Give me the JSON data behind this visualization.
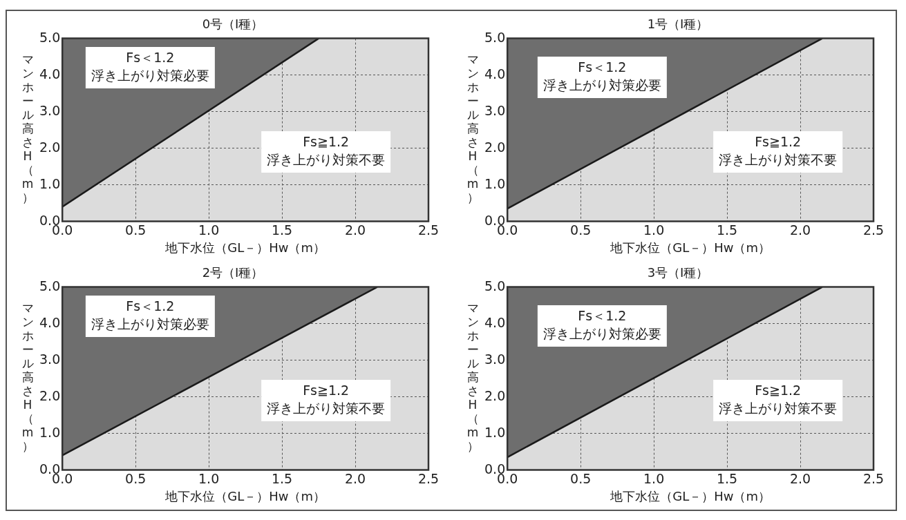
{
  "chart_data": [
    {
      "type": "area",
      "title": "0号（Ⅰ種）",
      "xlabel": "地下水位（GL－）Hw（m）",
      "ylabel": "マンホール高さH（m）",
      "xlim": [
        0,
        2.5
      ],
      "ylim": [
        0,
        5
      ],
      "xticks": [
        {
          "value": 0,
          "label": "0.0"
        },
        {
          "value": 0.5,
          "label": "0.5"
        },
        {
          "value": 1,
          "label": "1.0"
        },
        {
          "value": 1.5,
          "label": "1.5"
        },
        {
          "value": 2,
          "label": "2.0"
        },
        {
          "value": 2.5,
          "label": "2.5"
        }
      ],
      "yticks": [
        {
          "value": 0,
          "label": "0.0"
        },
        {
          "value": 1,
          "label": "1.0"
        },
        {
          "value": 2,
          "label": "2.0"
        },
        {
          "value": 3,
          "label": "3.0"
        },
        {
          "value": 4,
          "label": "4.0"
        },
        {
          "value": 5,
          "label": "5.0"
        }
      ],
      "x": [
        0,
        1.75
      ],
      "series": [
        {
          "color": "#6e6e6e",
          "values": [
            0.4,
            5.0
          ]
        }
      ],
      "grid": true,
      "line_style": "solid",
      "legend": false,
      "annotations": [
        "Fs＜1.2\n浮き上がり対策必要",
        "Fs≧1.2\n浮き上がり対策不要"
      ]
    },
    {
      "type": "area",
      "title": "1号（Ⅰ種）",
      "xlabel": "地下水位（GL－）Hw（m）",
      "ylabel": "マンホール高さH（m）",
      "xlim": [
        0,
        2.5
      ],
      "ylim": [
        0,
        5
      ],
      "xticks": [
        {
          "value": 0,
          "label": "0.0"
        },
        {
          "value": 0.5,
          "label": "0.5"
        },
        {
          "value": 1,
          "label": "1.0"
        },
        {
          "value": 1.5,
          "label": "1.5"
        },
        {
          "value": 2,
          "label": "2.0"
        },
        {
          "value": 2.5,
          "label": "2.5"
        }
      ],
      "yticks": [
        {
          "value": 0,
          "label": "0.0"
        },
        {
          "value": 1,
          "label": "1.0"
        },
        {
          "value": 2,
          "label": "2.0"
        },
        {
          "value": 3,
          "label": "3.0"
        },
        {
          "value": 4,
          "label": "4.0"
        },
        {
          "value": 5,
          "label": "5.0"
        }
      ],
      "x": [
        0,
        2.15
      ],
      "series": [
        {
          "color": "#6e6e6e",
          "values": [
            0.35,
            5.0
          ]
        }
      ],
      "grid": true,
      "line_style": "solid",
      "legend": false,
      "annotations": [
        "Fs＜1.2\n浮き上がり対策必要",
        "Fs≧1.2\n浮き上がり対策不要"
      ]
    },
    {
      "type": "area",
      "title": "2号（Ⅰ種）",
      "xlabel": "地下水位（GL－）Hw（m）",
      "ylabel": "マンホール高さH（m）",
      "xlim": [
        0,
        2.5
      ],
      "ylim": [
        0,
        5
      ],
      "xticks": [
        {
          "value": 0,
          "label": "0.0"
        },
        {
          "value": 0.5,
          "label": "0.5"
        },
        {
          "value": 1,
          "label": "1.0"
        },
        {
          "value": 1.5,
          "label": "1.5"
        },
        {
          "value": 2,
          "label": "2.0"
        },
        {
          "value": 2.5,
          "label": "2.5"
        }
      ],
      "yticks": [
        {
          "value": 0,
          "label": "0.0"
        },
        {
          "value": 1,
          "label": "1.0"
        },
        {
          "value": 2,
          "label": "2.0"
        },
        {
          "value": 3,
          "label": "3.0"
        },
        {
          "value": 4,
          "label": "4.0"
        },
        {
          "value": 5,
          "label": "5.0"
        }
      ],
      "x": [
        0,
        2.15
      ],
      "series": [
        {
          "color": "#6e6e6e",
          "values": [
            0.4,
            5.0
          ]
        }
      ],
      "grid": true,
      "line_style": "solid",
      "legend": false,
      "annotations": [
        "Fs＜1.2\n浮き上がり対策必要",
        "Fs≧1.2\n浮き上がり対策不要"
      ]
    },
    {
      "type": "area",
      "title": "3号（Ⅰ種）",
      "xlabel": "地下水位（GL－）Hw（m）",
      "ylabel": "マンホール高さH（m）",
      "xlim": [
        0,
        2.5
      ],
      "ylim": [
        0,
        5
      ],
      "xticks": [
        {
          "value": 0,
          "label": "0.0"
        },
        {
          "value": 0.5,
          "label": "0.5"
        },
        {
          "value": 1,
          "label": "1.0"
        },
        {
          "value": 1.5,
          "label": "1.5"
        },
        {
          "value": 2,
          "label": "2.0"
        },
        {
          "value": 2.5,
          "label": "2.5"
        }
      ],
      "yticks": [
        {
          "value": 0,
          "label": "0.0"
        },
        {
          "value": 1,
          "label": "1.0"
        },
        {
          "value": 2,
          "label": "2.0"
        },
        {
          "value": 3,
          "label": "3.0"
        },
        {
          "value": 4,
          "label": "4.0"
        },
        {
          "value": 5,
          "label": "5.0"
        }
      ],
      "x": [
        0,
        2.15
      ],
      "series": [
        {
          "color": "#6e6e6e",
          "values": [
            0.35,
            5.0
          ]
        }
      ],
      "grid": true,
      "line_style": "solid",
      "legend": false,
      "annotations": [
        "Fs＜1.2\n浮き上がり対策必要",
        "Fs≧1.2\n浮き上がり対策不要"
      ]
    }
  ]
}
